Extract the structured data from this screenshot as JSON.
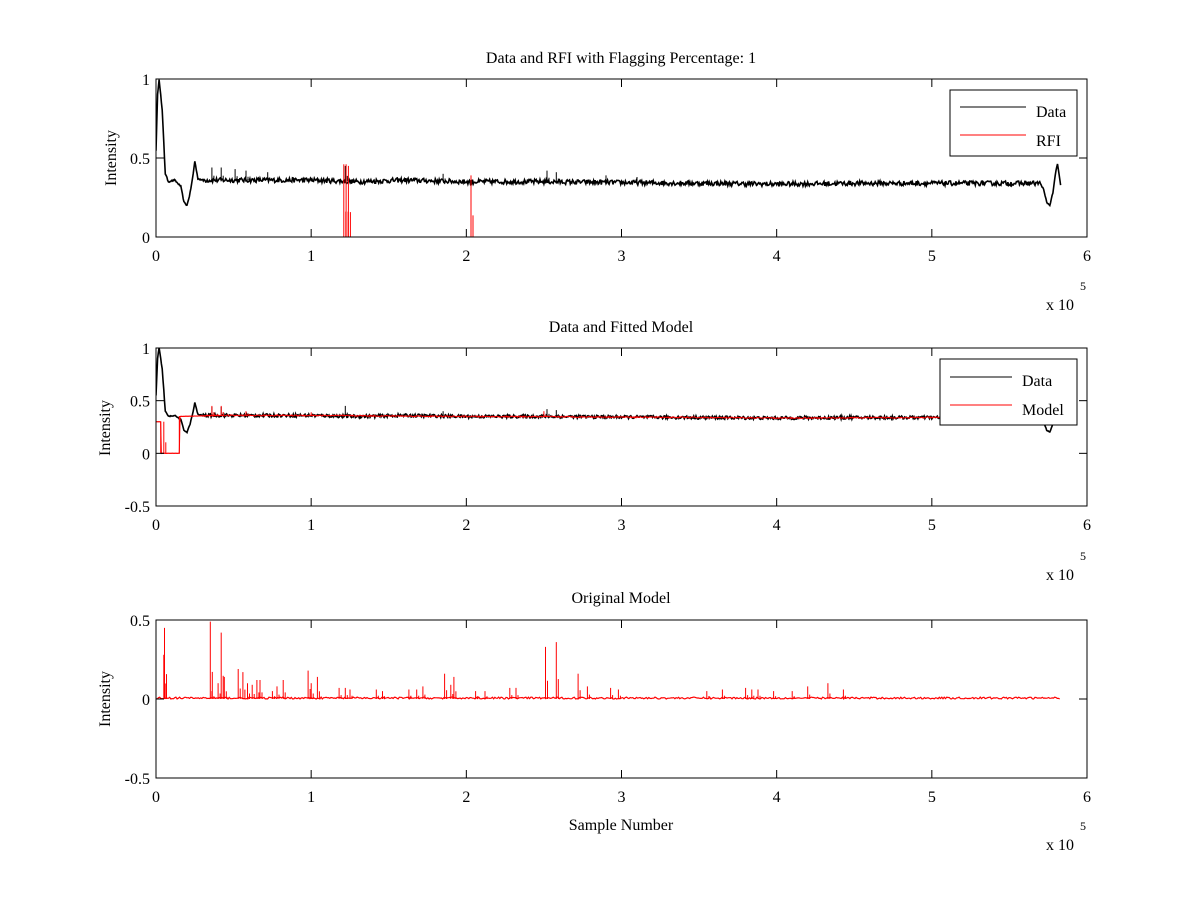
{
  "chart_data": [
    {
      "type": "line",
      "title": "Data and RFI with Flagging Percentage: 1",
      "xlabel": "",
      "ylabel": "Intensity",
      "xlim": [
        0,
        600000
      ],
      "ylim": [
        0,
        1
      ],
      "xticks": [
        0,
        100000,
        200000,
        300000,
        400000,
        500000,
        600000
      ],
      "xtick_labels": [
        "0",
        "1",
        "2",
        "3",
        "4",
        "5",
        "6"
      ],
      "yticks": [
        0,
        0.5,
        1
      ],
      "ytick_labels": [
        "0",
        "0.5",
        "1"
      ],
      "x_exponent_label": "x 10",
      "x_exponent": "5",
      "legend": {
        "location": "top-right",
        "entries": [
          "Data",
          "RFI"
        ]
      },
      "series": [
        {
          "name": "Data",
          "color": "#000000",
          "baseline": 0.35,
          "points": [
            [
              0,
              0.55
            ],
            [
              1000,
              0.9
            ],
            [
              2000,
              1.0
            ],
            [
              4000,
              0.8
            ],
            [
              6000,
              0.4
            ],
            [
              8000,
              0.35
            ],
            [
              12000,
              0.36
            ],
            [
              16000,
              0.32
            ],
            [
              18000,
              0.22
            ],
            [
              20000,
              0.2
            ],
            [
              22000,
              0.28
            ],
            [
              24000,
              0.4
            ],
            [
              25000,
              0.48
            ],
            [
              27000,
              0.37
            ],
            [
              30000,
              0.36
            ],
            [
              60000,
              0.36
            ],
            [
              100000,
              0.36
            ],
            [
              130000,
              0.35
            ],
            [
              160000,
              0.36
            ],
            [
              200000,
              0.35
            ],
            [
              250000,
              0.35
            ],
            [
              300000,
              0.345
            ],
            [
              350000,
              0.34
            ],
            [
              400000,
              0.335
            ],
            [
              450000,
              0.34
            ],
            [
              500000,
              0.34
            ],
            [
              550000,
              0.34
            ],
            [
              570000,
              0.34
            ],
            [
              572000,
              0.3
            ],
            [
              574000,
              0.22
            ],
            [
              576000,
              0.2
            ],
            [
              578000,
              0.28
            ],
            [
              580000,
              0.42
            ],
            [
              581000,
              0.46
            ],
            [
              583000,
              0.33
            ]
          ],
          "spikes": [
            [
              36000,
              0.44
            ],
            [
              42000,
              0.44
            ],
            [
              51000,
              0.43
            ],
            [
              58000,
              0.42
            ],
            [
              72000,
              0.41
            ],
            [
              122000,
              0.45
            ],
            [
              185000,
              0.4
            ],
            [
              252000,
              0.42
            ],
            [
              258000,
              0.41
            ],
            [
              290000,
              0.39
            ],
            [
              310000,
              0.38
            ]
          ]
        },
        {
          "name": "RFI",
          "color": "#ff0000",
          "spikes": [
            [
              121000,
              0.46
            ],
            [
              122500,
              0.46
            ],
            [
              124000,
              0.45
            ],
            [
              203000,
              0.39
            ]
          ]
        }
      ]
    },
    {
      "type": "line",
      "title": "Data and Fitted Model",
      "xlabel": "",
      "ylabel": "Intensity",
      "xlim": [
        0,
        600000
      ],
      "ylim": [
        -0.5,
        1
      ],
      "xticks": [
        0,
        100000,
        200000,
        300000,
        400000,
        500000,
        600000
      ],
      "xtick_labels": [
        "0",
        "1",
        "2",
        "3",
        "4",
        "5",
        "6"
      ],
      "yticks": [
        -0.5,
        0,
        0.5,
        1
      ],
      "ytick_labels": [
        "-0.5",
        "0",
        "0.5",
        "1"
      ],
      "x_exponent_label": "x 10",
      "x_exponent": "5",
      "legend": {
        "location": "top-right",
        "entries": [
          "Data",
          "Model"
        ]
      },
      "series": [
        {
          "name": "Data",
          "color": "#000000",
          "baseline": 0.35,
          "points": [
            [
              0,
              0.55
            ],
            [
              1000,
              0.9
            ],
            [
              2000,
              1.0
            ],
            [
              4000,
              0.8
            ],
            [
              6000,
              0.4
            ],
            [
              8000,
              0.35
            ],
            [
              12000,
              0.36
            ],
            [
              16000,
              0.32
            ],
            [
              18000,
              0.22
            ],
            [
              20000,
              0.2
            ],
            [
              22000,
              0.28
            ],
            [
              24000,
              0.4
            ],
            [
              25000,
              0.48
            ],
            [
              27000,
              0.37
            ],
            [
              30000,
              0.36
            ],
            [
              60000,
              0.36
            ],
            [
              100000,
              0.36
            ],
            [
              130000,
              0.35
            ],
            [
              160000,
              0.36
            ],
            [
              200000,
              0.35
            ],
            [
              250000,
              0.35
            ],
            [
              300000,
              0.345
            ],
            [
              350000,
              0.34
            ],
            [
              400000,
              0.335
            ],
            [
              450000,
              0.34
            ],
            [
              500000,
              0.34
            ],
            [
              550000,
              0.34
            ],
            [
              570000,
              0.34
            ],
            [
              572000,
              0.3
            ],
            [
              574000,
              0.22
            ],
            [
              576000,
              0.2
            ],
            [
              578000,
              0.28
            ],
            [
              580000,
              0.42
            ],
            [
              581000,
              0.46
            ],
            [
              583000,
              0.33
            ]
          ],
          "spikes": [
            [
              36000,
              0.44
            ],
            [
              42000,
              0.44
            ],
            [
              122000,
              0.45
            ],
            [
              185000,
              0.4
            ],
            [
              252000,
              0.42
            ],
            [
              258000,
              0.41
            ]
          ]
        },
        {
          "name": "Model",
          "color": "#ff0000",
          "baseline": 0.35,
          "points": [
            [
              0,
              0.3
            ],
            [
              3000,
              0.3
            ],
            [
              3000,
              0
            ],
            [
              15000,
              0
            ],
            [
              15000,
              0.35
            ],
            [
              40000,
              0.36
            ],
            [
              100000,
              0.36
            ],
            [
              200000,
              0.35
            ],
            [
              300000,
              0.345
            ],
            [
              400000,
              0.335
            ],
            [
              500000,
              0.34
            ],
            [
              560000,
              0.34
            ]
          ],
          "spikes": [
            [
              5000,
              0.3
            ],
            [
              36000,
              0.45
            ],
            [
              42000,
              0.45
            ],
            [
              58000,
              0.4
            ],
            [
              100000,
              0.39
            ],
            [
              250000,
              0.4
            ]
          ]
        }
      ]
    },
    {
      "type": "line",
      "title": "Original Model",
      "xlabel": "Sample Number",
      "ylabel": "Intensity",
      "xlim": [
        0,
        600000
      ],
      "ylim": [
        -0.5,
        0.5
      ],
      "xticks": [
        0,
        100000,
        200000,
        300000,
        400000,
        500000,
        600000
      ],
      "xtick_labels": [
        "0",
        "1",
        "2",
        "3",
        "4",
        "5",
        "6"
      ],
      "yticks": [
        -0.5,
        0,
        0.5
      ],
      "ytick_labels": [
        "-0.5",
        "0",
        "0.5"
      ],
      "x_exponent_label": "x 10",
      "x_exponent": "5",
      "series": [
        {
          "color": "#ff0000",
          "baseline": 0.0,
          "x_end": 583000,
          "spikes": [
            [
              5500,
              0.45
            ],
            [
              5000,
              0.28
            ],
            [
              35000,
              0.49
            ],
            [
              36000,
              0.05
            ],
            [
              40000,
              0.1
            ],
            [
              42000,
              0.42
            ],
            [
              44000,
              0.14
            ],
            [
              53000,
              0.19
            ],
            [
              56000,
              0.17
            ],
            [
              59000,
              0.1
            ],
            [
              62000,
              0.09
            ],
            [
              65000,
              0.12
            ],
            [
              67000,
              0.12
            ],
            [
              75000,
              0.05
            ],
            [
              78000,
              0.08
            ],
            [
              82000,
              0.12
            ],
            [
              98000,
              0.18
            ],
            [
              100000,
              0.1
            ],
            [
              104000,
              0.14
            ],
            [
              118000,
              0.07
            ],
            [
              122000,
              0.07
            ],
            [
              125000,
              0.06
            ],
            [
              142000,
              0.06
            ],
            [
              146000,
              0.05
            ],
            [
              163000,
              0.06
            ],
            [
              168000,
              0.06
            ],
            [
              172000,
              0.08
            ],
            [
              186000,
              0.16
            ],
            [
              190000,
              0.09
            ],
            [
              192000,
              0.14
            ],
            [
              206000,
              0.05
            ],
            [
              212000,
              0.05
            ],
            [
              228000,
              0.07
            ],
            [
              232000,
              0.07
            ],
            [
              251000,
              0.33
            ],
            [
              258000,
              0.36
            ],
            [
              272000,
              0.16
            ],
            [
              278000,
              0.08
            ],
            [
              293000,
              0.07
            ],
            [
              298000,
              0.06
            ],
            [
              355000,
              0.05
            ],
            [
              365000,
              0.06
            ],
            [
              380000,
              0.07
            ],
            [
              384000,
              0.06
            ],
            [
              388000,
              0.06
            ],
            [
              398000,
              0.05
            ],
            [
              410000,
              0.05
            ],
            [
              420000,
              0.08
            ],
            [
              433000,
              0.1
            ],
            [
              443000,
              0.06
            ]
          ]
        }
      ]
    }
  ]
}
